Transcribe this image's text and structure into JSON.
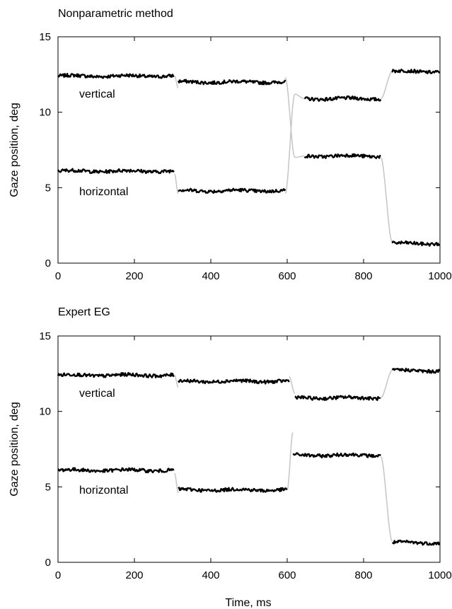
{
  "colors": {
    "background": "#ffffff",
    "fixation": "#000000",
    "saccade": "#c8c8c8",
    "axis": "#000000"
  },
  "figure": {
    "xlabel": "Time, ms"
  },
  "chart_data": [
    {
      "type": "line",
      "title": "Nonparametric method",
      "xlabel": "",
      "ylabel": "Gaze position, deg",
      "xlim": [
        0,
        1000
      ],
      "ylim": [
        0,
        15
      ],
      "xticks": [
        0,
        200,
        400,
        600,
        800,
        1000
      ],
      "yticks": [
        0,
        5,
        10,
        15
      ],
      "grid": false,
      "legend": "none",
      "annotations": [
        "vertical",
        "horizontal"
      ],
      "series": [
        {
          "label": "vertical",
          "fixations": [
            [
              0,
              305,
              12.4
            ],
            [
              315,
              595,
              12.0
            ],
            [
              645,
              845,
              10.9
            ],
            [
              875,
              1000,
              12.7
            ]
          ],
          "saccades": [
            [
              305,
              315,
              12.4,
              11.6
            ],
            [
              595,
              620,
              12.3,
              7.0
            ],
            [
              620,
              645,
              11.2,
              10.9
            ],
            [
              845,
              875,
              10.9,
              12.7
            ]
          ]
        },
        {
          "label": "horizontal",
          "fixations": [
            [
              0,
              305,
              6.1
            ],
            [
              315,
              595,
              4.8
            ],
            [
              645,
              845,
              7.1
            ],
            [
              875,
              1000,
              1.3
            ]
          ],
          "saccades": [
            [
              305,
              315,
              5.9,
              4.6
            ],
            [
              595,
              620,
              4.6,
              11.2
            ],
            [
              620,
              645,
              7.0,
              7.1
            ],
            [
              845,
              875,
              7.0,
              1.4
            ]
          ]
        }
      ]
    },
    {
      "type": "line",
      "title": "Expert EG",
      "xlabel": "Time, ms",
      "ylabel": "Gaze position, deg",
      "xlim": [
        0,
        1000
      ],
      "ylim": [
        0,
        15
      ],
      "xticks": [
        0,
        200,
        400,
        600,
        800,
        1000
      ],
      "yticks": [
        0,
        5,
        10,
        15
      ],
      "grid": false,
      "legend": "none",
      "annotations": [
        "vertical",
        "horizontal"
      ],
      "series": [
        {
          "label": "vertical",
          "fixations": [
            [
              0,
              305,
              12.4
            ],
            [
              315,
              605,
              12.0
            ],
            [
              620,
              845,
              10.9
            ],
            [
              875,
              1000,
              12.7
            ]
          ],
          "saccades": [
            [
              305,
              315,
              12.4,
              11.6
            ],
            [
              605,
              620,
              12.3,
              11.2
            ],
            [
              845,
              875,
              10.9,
              12.7
            ]
          ]
        },
        {
          "label": "horizontal",
          "fixations": [
            [
              0,
              305,
              6.1
            ],
            [
              315,
              600,
              4.8
            ],
            [
              615,
              845,
              7.1
            ],
            [
              875,
              1000,
              1.3
            ]
          ],
          "saccades": [
            [
              305,
              315,
              5.9,
              4.6
            ],
            [
              600,
              615,
              4.8,
              8.6
            ],
            [
              845,
              875,
              7.0,
              1.4
            ]
          ]
        }
      ]
    }
  ]
}
